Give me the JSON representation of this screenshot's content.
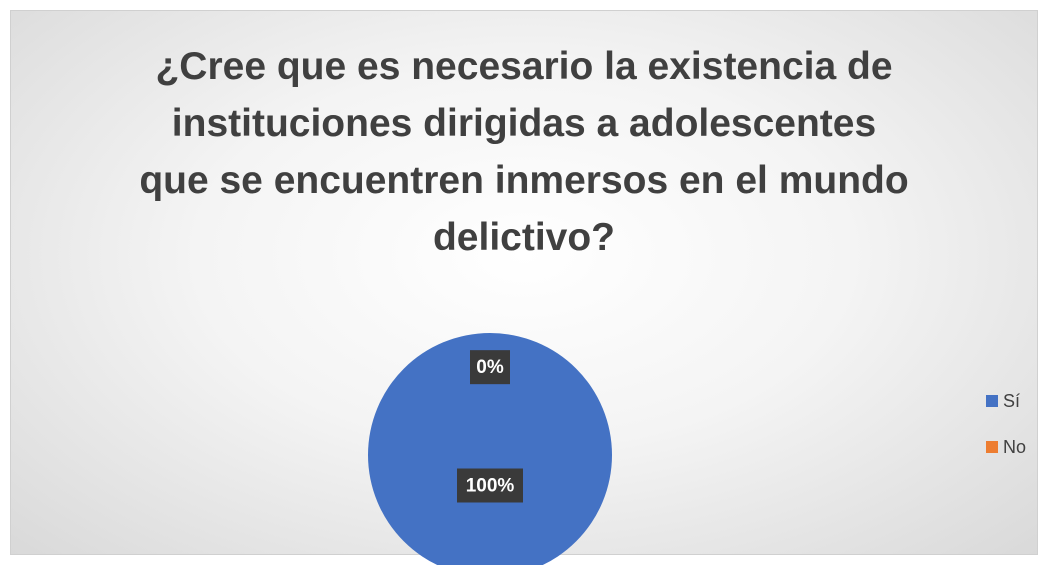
{
  "chart_data": {
    "type": "pie",
    "title": "¿Cree que es necesario la existencia de\ninstituciones dirigidas a adolescentes\nque se encuentren inmersos en el mundo\ndelictivo?",
    "categories": [
      "Sí",
      "No"
    ],
    "values": [
      100,
      0
    ],
    "value_labels": [
      "100%",
      "0%"
    ],
    "colors": [
      "#4472c4",
      "#ed7d31"
    ],
    "legend": "right"
  }
}
